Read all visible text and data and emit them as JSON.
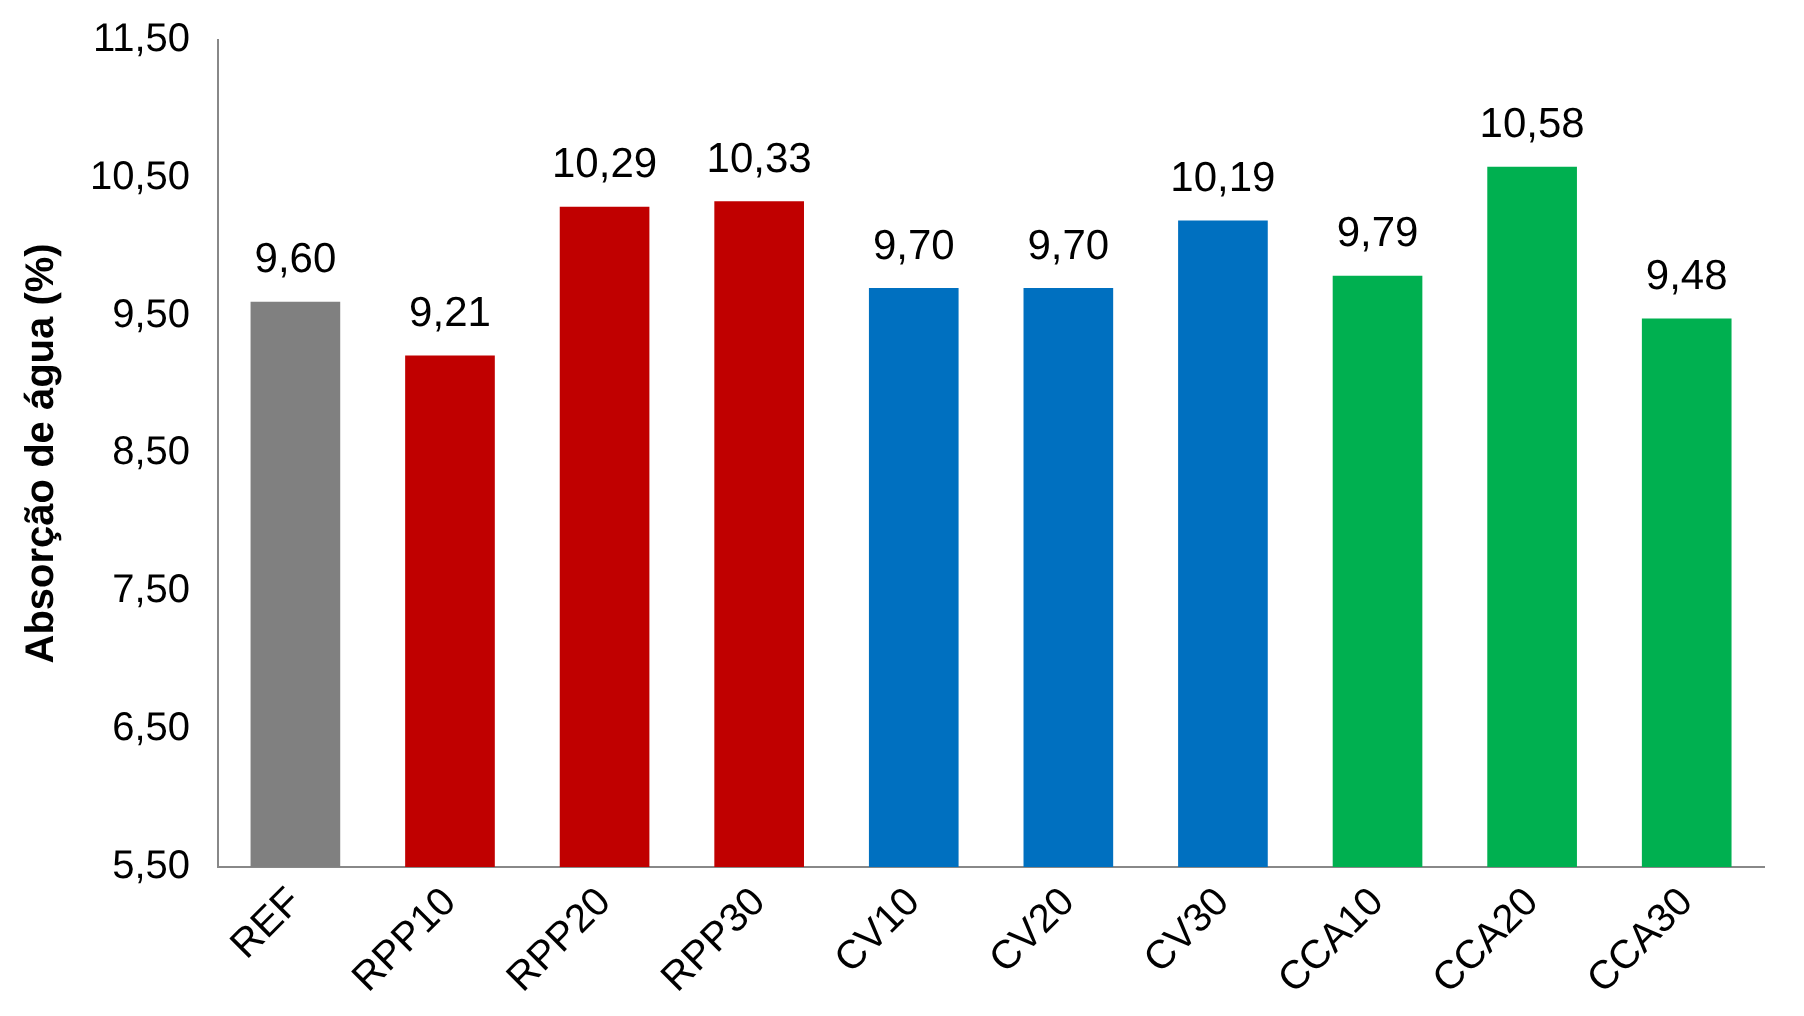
{
  "chart_data": {
    "type": "bar",
    "ylabel": "Absorção de água (%)",
    "categories": [
      "REF",
      "RPP10",
      "RPP20",
      "RPP30",
      "CV10",
      "CV20",
      "CV30",
      "CCA10",
      "CCA20",
      "CCA30"
    ],
    "values": [
      9.6,
      9.21,
      10.29,
      10.33,
      9.7,
      9.7,
      10.19,
      9.79,
      10.58,
      9.48
    ],
    "colors": [
      "#808080",
      "#c00000",
      "#c00000",
      "#c00000",
      "#0070c0",
      "#0070c0",
      "#0070c0",
      "#00b050",
      "#00b050",
      "#00b050"
    ],
    "value_labels": [
      "9,60",
      "9,21",
      "10,29",
      "10,33",
      "9,70",
      "9,70",
      "10,19",
      "9,79",
      "10,58",
      "9,48"
    ],
    "ylim": [
      5.5,
      11.5
    ],
    "yticks": [
      {
        "value": 5.5,
        "label": "5,50"
      },
      {
        "value": 6.5,
        "label": "6,50"
      },
      {
        "value": 7.5,
        "label": "7,50"
      },
      {
        "value": 8.5,
        "label": "8,50"
      },
      {
        "value": 9.5,
        "label": "9,50"
      },
      {
        "value": 10.5,
        "label": "10,50"
      },
      {
        "value": 11.5,
        "label": "11,50"
      }
    ],
    "grid": false,
    "legend": false
  }
}
